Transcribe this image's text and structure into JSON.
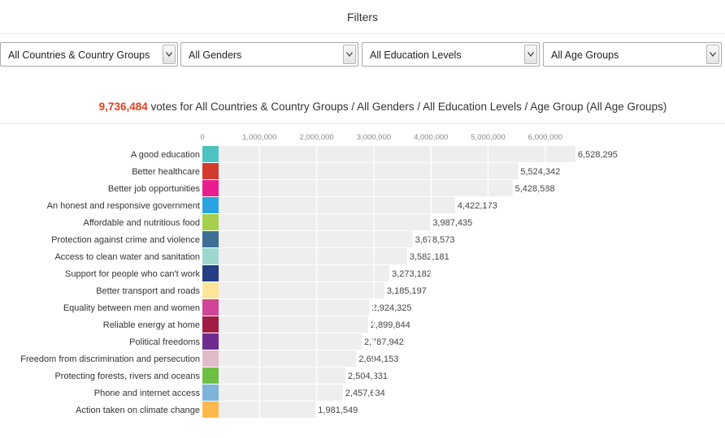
{
  "filters": {
    "title": "Filters",
    "country": {
      "value": "All Countries & Country Groups"
    },
    "gender": {
      "value": "All Genders"
    },
    "education": {
      "value": "All Education Levels"
    },
    "age": {
      "value": "All Age Groups"
    }
  },
  "summary": {
    "count": "9,736,484",
    "text": "votes for All Countries & Country Groups / All Genders / All Education Levels / Age Group (All Age Groups)"
  },
  "chart_data": {
    "type": "bar",
    "orientation": "horizontal",
    "title": "",
    "xlabel": "",
    "ylabel": "",
    "xlim": [
      0,
      7000000
    ],
    "grid": true,
    "xticks": [
      0,
      1000000,
      2000000,
      3000000,
      4000000,
      5000000,
      6000000
    ],
    "xtick_labels": [
      "0",
      "1,000,000",
      "2,000,000",
      "3,000,000",
      "4,000,000",
      "5,000,000",
      "6,000,000"
    ],
    "categories": [
      "A good education",
      "Better healthcare",
      "Better job opportunities",
      "An honest and responsive government",
      "Affordable and nutritious food",
      "Protection against crime and violence",
      "Access to clean water and sanitation",
      "Support for people who can't work",
      "Better transport and roads",
      "Equality between men and women",
      "Reliable energy at home",
      "Political freedoms",
      "Freedom from discrimination and persecution",
      "Protecting forests, rivers and oceans",
      "Phone and internet access",
      "Action taken on climate change"
    ],
    "values": [
      6528295,
      5524342,
      5428588,
      4422173,
      3987435,
      3678573,
      3582181,
      3273182,
      3185197,
      2924325,
      2899844,
      2787942,
      2694153,
      2504331,
      2457634,
      1981549
    ],
    "value_labels": [
      "6,528,295",
      "5,524,342",
      "5,428,588",
      "4,422,173",
      "3,987,435",
      "3,678,573",
      "3,582,181",
      "3,273,182",
      "3,185,197",
      "2,924,325",
      "2,899,844",
      "2,787,942",
      "2,694,153",
      "2,504,331",
      "2,457,634",
      "1,981,549"
    ],
    "colors": [
      "#4cc3c1",
      "#d23a2e",
      "#e91e8c",
      "#2aa4e0",
      "#a5cf4c",
      "#3e6f94",
      "#9dd7cf",
      "#233f86",
      "#ffe597",
      "#d04597",
      "#a21c46",
      "#6f2c90",
      "#dfbcc8",
      "#6dbe45",
      "#7db5d8",
      "#fdb84e"
    ],
    "bar_color": "#eeeeee"
  }
}
